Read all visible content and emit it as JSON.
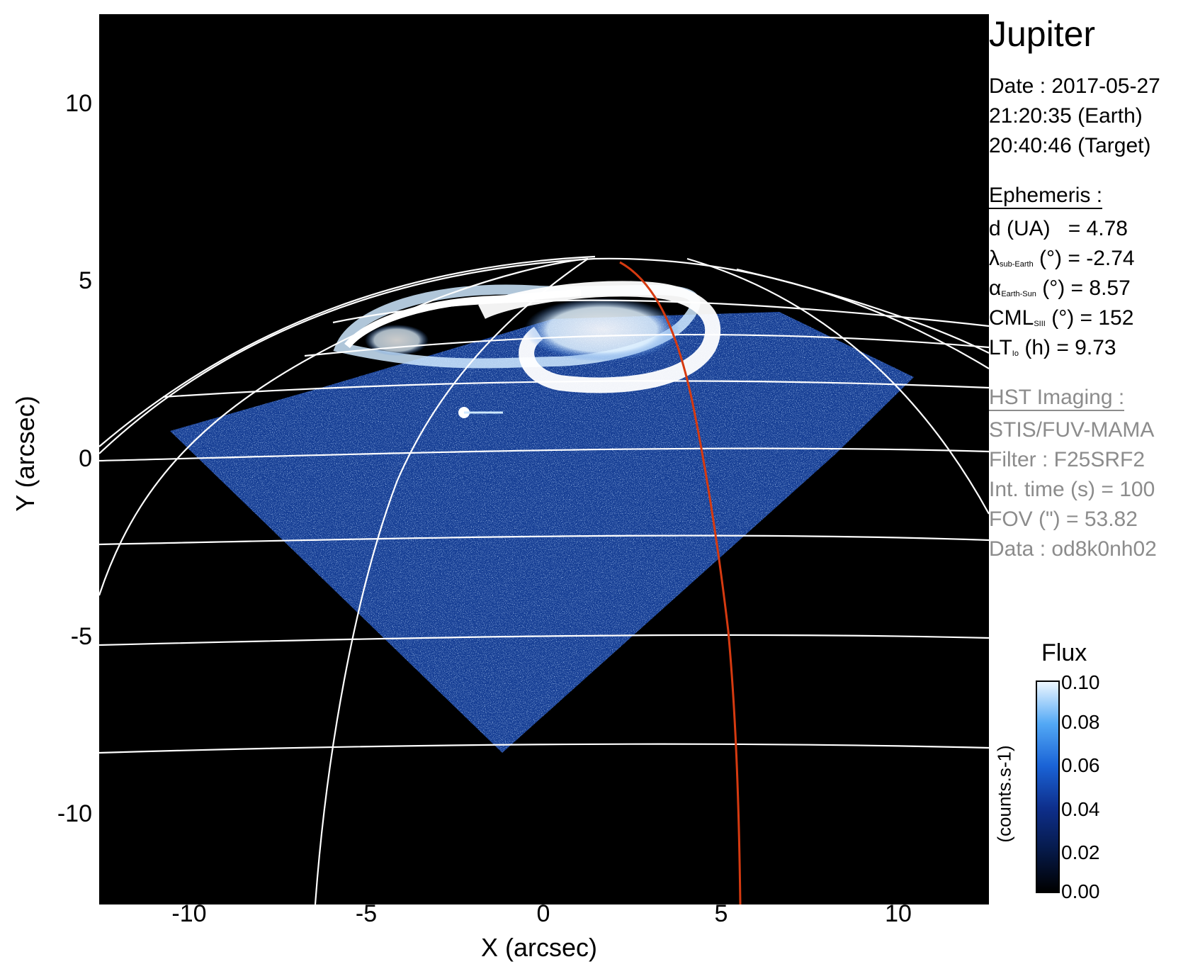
{
  "image": {
    "title": "Jupiter",
    "date_line": "Date : 2017-05-27",
    "time_earth": "21:20:35 (Earth)",
    "time_target": "20:40:46 (Target)"
  },
  "ephemeris": {
    "heading": "Ephemeris :",
    "d_label": "d (UA)",
    "d_value": "= 4.78",
    "lambda_symbol": "λ",
    "lambda_sub": "sub-Earth",
    "lambda_rest": "(°) = -2.74",
    "alpha_symbol": "α",
    "alpha_sub": "Earth-Sun",
    "alpha_rest": "(°) = 8.57",
    "cml_label": "CML",
    "cml_sub": "SIII",
    "cml_rest": "(°) = 152",
    "lt_label": "LT",
    "lt_sub": "Io",
    "lt_rest": "(h) = 9.73"
  },
  "hst": {
    "heading": "HST Imaging :",
    "instrument": "STIS/FUV-MAMA",
    "filter": "Filter : F25SRF2",
    "int_time": "Int. time (s) = 100",
    "fov": "FOV (\") = 53.82",
    "data": "Data : od8k0nh02"
  },
  "axes": {
    "xlabel": "X (arcsec)",
    "ylabel": "Y (arcsec)",
    "xticks": [
      "-10",
      "-5",
      "0",
      "5",
      "10"
    ],
    "yticks": [
      "10",
      "5",
      "0",
      "-5",
      "-10"
    ]
  },
  "colorbar": {
    "title": "Flux",
    "unit": "(counts.s-1)",
    "ticks": [
      "0.10",
      "0.08",
      "0.06",
      "0.04",
      "0.02",
      "0.00"
    ]
  },
  "colors": {
    "background": "#000000",
    "grid": "#ffffff",
    "trace": "#d63a10",
    "aurora": "#ffffff",
    "diffuse": "#1a4aa8"
  }
}
